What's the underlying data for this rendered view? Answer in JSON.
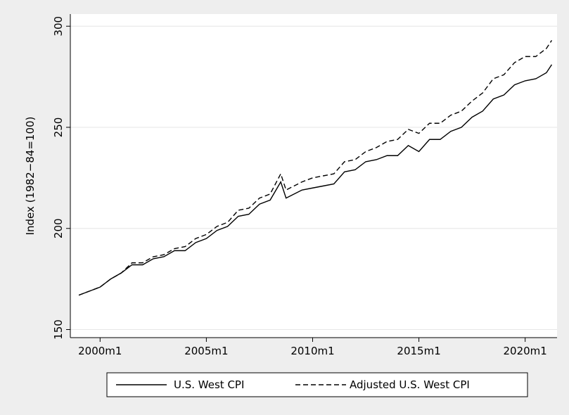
{
  "chart_data": {
    "type": "line",
    "y_label": "Index (1982−84=100)",
    "x": [
      1999.0,
      1999.5,
      2000.0,
      2000.5,
      2001.0,
      2001.5,
      2002.0,
      2002.5,
      2003.0,
      2003.5,
      2004.0,
      2004.5,
      2005.0,
      2005.5,
      2006.0,
      2006.5,
      2007.0,
      2007.5,
      2008.0,
      2008.5,
      2008.75,
      2009.5,
      2010.0,
      2010.5,
      2011.0,
      2011.5,
      2012.0,
      2012.5,
      2013.0,
      2013.5,
      2014.0,
      2014.5,
      2015.0,
      2015.5,
      2016.0,
      2016.5,
      2017.0,
      2017.5,
      2018.0,
      2018.5,
      2019.0,
      2019.5,
      2020.0,
      2020.5,
      2021.0,
      2021.25
    ],
    "series": [
      {
        "name": "U.S. West CPI",
        "color": "#000000",
        "dash": "solid",
        "values": [
          167,
          169,
          171,
          175,
          178,
          182,
          182,
          185,
          186,
          189,
          189,
          193,
          195,
          199,
          201,
          206,
          207,
          212,
          214,
          223,
          215,
          219,
          220,
          221,
          222,
          228,
          229,
          233,
          234,
          236,
          236,
          241,
          238,
          244,
          244,
          248,
          250,
          255,
          258,
          264,
          266,
          271,
          273,
          274,
          277,
          281
        ]
      },
      {
        "name": "Adjusted U.S. West CPI",
        "color": "#000000",
        "dash": "dashed",
        "values": [
          167,
          169,
          171,
          175,
          178,
          183,
          183,
          186,
          187,
          190,
          191,
          195,
          197,
          201,
          203,
          209,
          210,
          215,
          217,
          227,
          219,
          223,
          225,
          226,
          227,
          233,
          234,
          238,
          240,
          243,
          244,
          249,
          247,
          252,
          252,
          256,
          258,
          263,
          267,
          274,
          276,
          282,
          285,
          285,
          289,
          293
        ]
      }
    ],
    "xlim": [
      1998.6,
      2021.5
    ],
    "xticks": [
      {
        "value": 2000,
        "label": "2000m1"
      },
      {
        "value": 2005,
        "label": "2005m1"
      },
      {
        "value": 2010,
        "label": "2010m1"
      },
      {
        "value": 2015,
        "label": "2015m1"
      },
      {
        "value": 2020,
        "label": "2020m1"
      }
    ],
    "ylim": [
      146,
      306
    ],
    "yticks": [
      150,
      200,
      250,
      300
    ],
    "grid": true,
    "legend": "bottom"
  }
}
